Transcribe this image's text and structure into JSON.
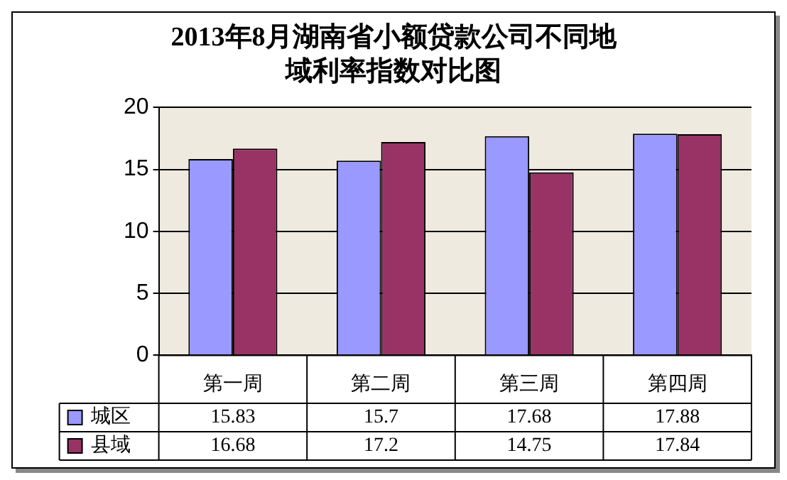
{
  "chart_data": {
    "type": "bar",
    "title": "2013年8月湖南省小额贷款公司不同地域利率指数对比图",
    "categories": [
      "第一周",
      "第二周",
      "第三周",
      "第四周"
    ],
    "series": [
      {
        "name": "城区",
        "color": "#9999ff",
        "values": [
          15.83,
          15.7,
          17.68,
          17.88
        ]
      },
      {
        "name": "县域",
        "color": "#993366",
        "values": [
          16.68,
          17.2,
          14.75,
          17.84
        ]
      }
    ],
    "ylim": [
      0,
      20
    ],
    "yticks": [
      0,
      5,
      10,
      15,
      20
    ],
    "grid": "y",
    "legend": "bottom",
    "data_labels": true
  }
}
